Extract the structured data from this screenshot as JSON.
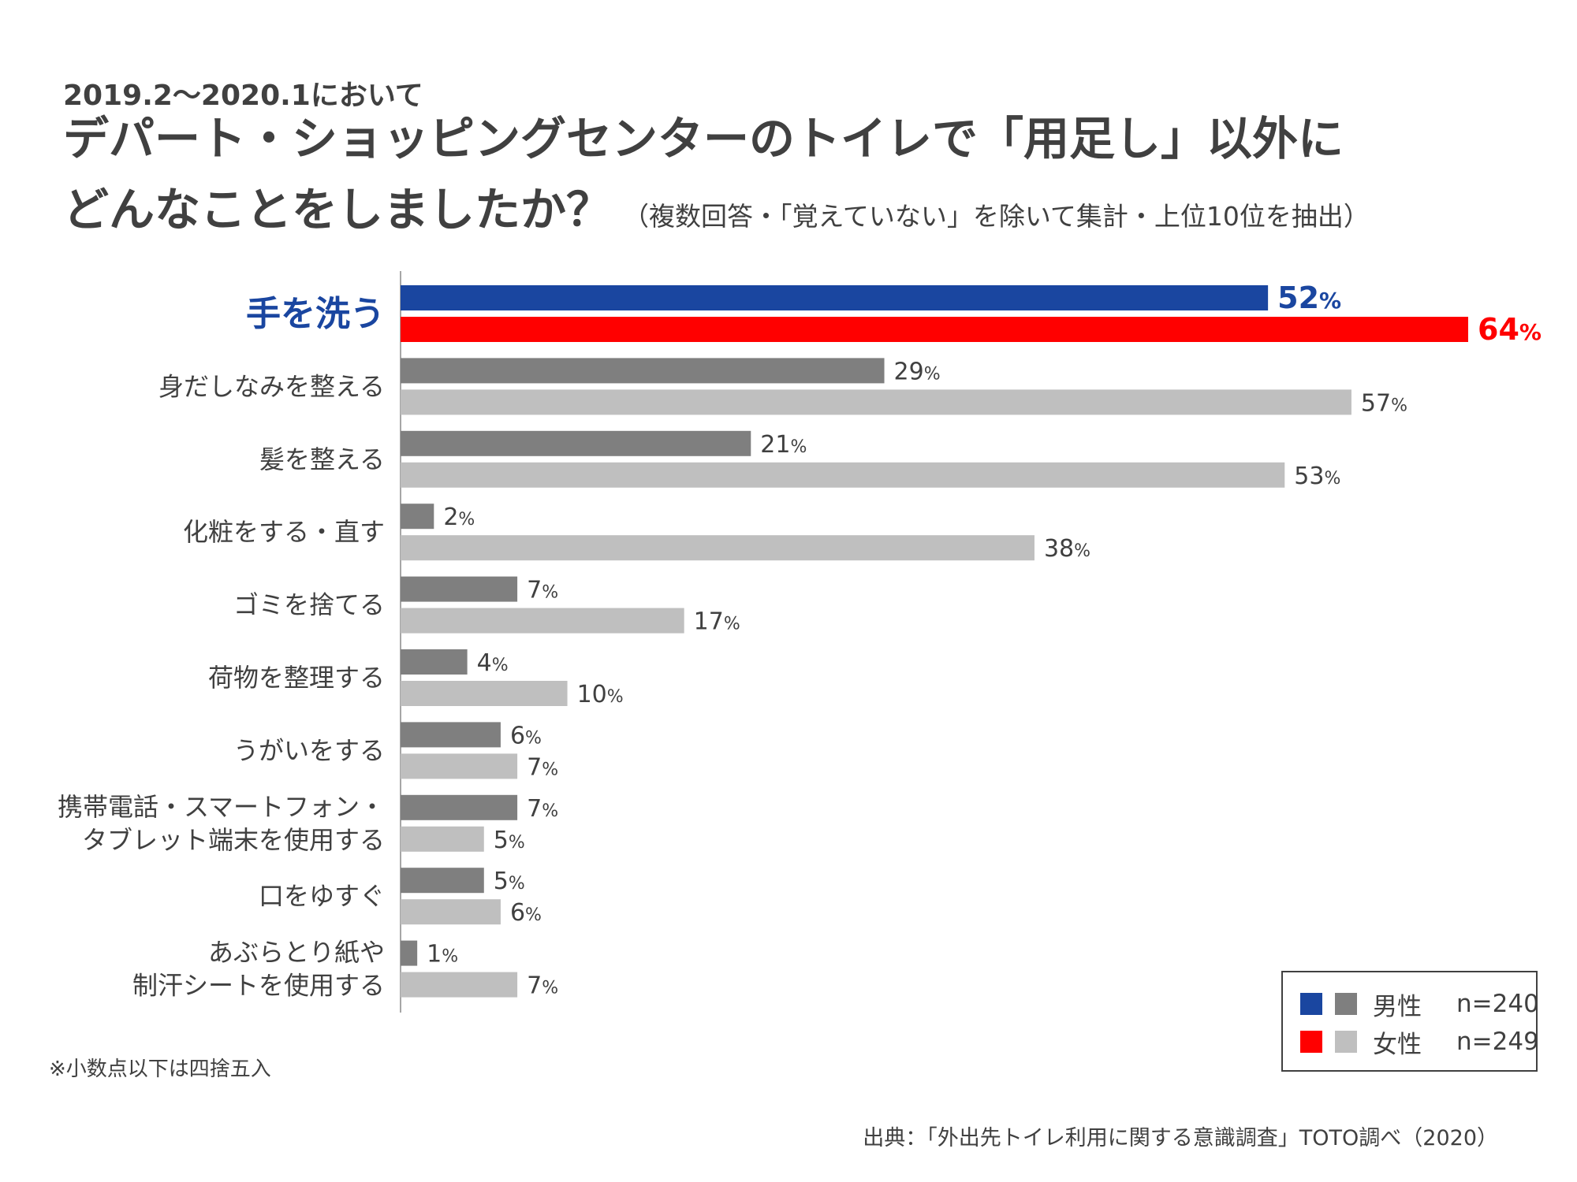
{
  "header": {
    "period": "2019.2〜2020.1において",
    "title_line1": "デパート・ショッピングセンターのトイレで「用足し」以外に",
    "title_line2": "どんなことをしましたか？",
    "title_note": "（複数回答・「覚えていない」を除いて集計・上位10位を抽出）"
  },
  "chart_data": {
    "type": "bar",
    "orientation": "horizontal",
    "unit": "%",
    "categories": [
      [
        "手を洗う"
      ],
      [
        "身だしなみを整える"
      ],
      [
        "髪を整える"
      ],
      [
        "化粧をする・直す"
      ],
      [
        "ゴミを捨てる"
      ],
      [
        "荷物を整理する"
      ],
      [
        "うがいをする"
      ],
      [
        "携帯電話・スマートフォン・",
        "タブレット端末を使用する"
      ],
      [
        "口をゆすぐ"
      ],
      [
        "あぶらとり紙や",
        "制汗シートを使用する"
      ]
    ],
    "series": [
      {
        "name": "男性",
        "n": "n=240",
        "values": [
          52,
          29,
          21,
          2,
          7,
          4,
          6,
          7,
          5,
          1
        ]
      },
      {
        "name": "女性",
        "n": "n=249",
        "values": [
          64,
          57,
          53,
          38,
          17,
          10,
          7,
          5,
          6,
          7
        ]
      }
    ],
    "xlim": [
      0,
      64
    ],
    "legend": "bottom-right",
    "grid": false,
    "highlight_index": 0,
    "colors": {
      "male": "#7f7f7f",
      "female": "#bfbfbf",
      "male_highlight": "#1a46a0",
      "female_highlight": "#ff0000",
      "axis": "#a6a6a6",
      "text": "#404040"
    }
  },
  "legend": {
    "male_label": "男性",
    "male_n": "n=240",
    "female_label": "女性",
    "female_n": "n=249"
  },
  "footnote": "※小数点以下は四捨五入",
  "source": "出典：「外出先トイレ利用に関する意識調査」TOTO調べ（2020）"
}
